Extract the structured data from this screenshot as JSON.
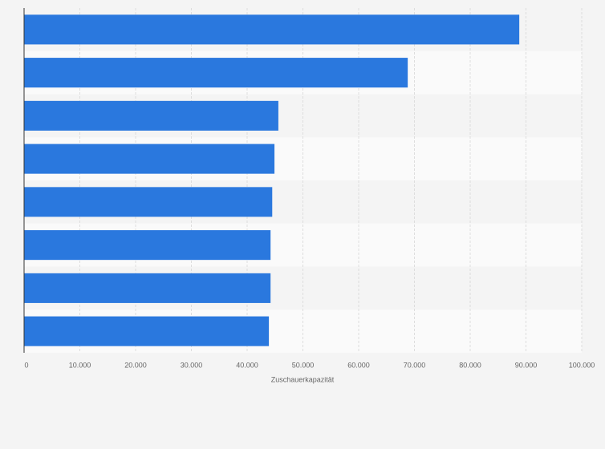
{
  "chart_data": {
    "type": "bar",
    "orientation": "horizontal",
    "x_label": "Zuschauerkapazität",
    "categories": [
      null,
      null,
      null,
      null,
      null,
      null,
      null,
      null
    ],
    "values": [
      88800,
      68800,
      45600,
      44900,
      44500,
      44200,
      44200,
      43900
    ],
    "color": "#2a78de",
    "xlim": [
      0,
      100000
    ],
    "xticks": [
      0,
      {
        "value": 10000,
        "label": "10.000"
      },
      {
        "value": 20000,
        "label": "20.000"
      },
      {
        "value": 30000,
        "label": "30.000"
      },
      {
        "value": 40000,
        "label": "40.000"
      },
      {
        "value": 50000,
        "label": "50.000"
      },
      {
        "value": 60000,
        "label": "60.000"
      },
      {
        "value": 70000,
        "label": "70.000"
      },
      {
        "value": 80000,
        "label": "80.000"
      },
      {
        "value": 90000,
        "label": "90.000"
      },
      {
        "value": 100000,
        "label": "100.000"
      }
    ],
    "grid": true
  }
}
